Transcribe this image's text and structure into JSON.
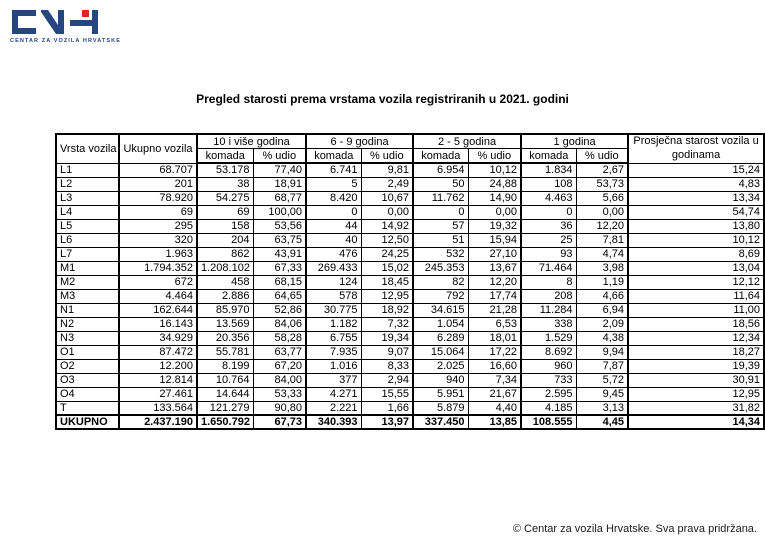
{
  "logo": {
    "name": "CVH",
    "tagline": "CENTAR ZA VOZILA HRVATSKE",
    "brand_blue": "#27457f",
    "brand_red": "#d8291f"
  },
  "title": "Pregled starosti prema vrstama vozila registriranih u 2021. godini",
  "table": {
    "header": {
      "vrsta": "Vrsta vozila",
      "ukupno": "Ukupno vozila",
      "groups": [
        "10 i više godina",
        "6 - 9 godina",
        "2 - 5 godina",
        "1 godina"
      ],
      "sub_komada": "komada",
      "sub_udio": "% udio",
      "prosjecna": "Prosječna starost vozila u godinama"
    },
    "rows": [
      {
        "vrsta": "L1",
        "cells": [
          "68.707",
          "53.178",
          "77,40",
          "6.741",
          "9,81",
          "6.954",
          "10,12",
          "1.834",
          "2,67",
          "15,24"
        ]
      },
      {
        "vrsta": "L2",
        "cells": [
          "201",
          "38",
          "18,91",
          "5",
          "2,49",
          "50",
          "24,88",
          "108",
          "53,73",
          "4,83"
        ]
      },
      {
        "vrsta": "L3",
        "cells": [
          "78.920",
          "54.275",
          "68,77",
          "8.420",
          "10,67",
          "11.762",
          "14,90",
          "4.463",
          "5,66",
          "13,34"
        ]
      },
      {
        "vrsta": "L4",
        "cells": [
          "69",
          "69",
          "100,00",
          "0",
          "0,00",
          "0",
          "0,00",
          "0",
          "0,00",
          "54,74"
        ]
      },
      {
        "vrsta": "L5",
        "cells": [
          "295",
          "158",
          "53,56",
          "44",
          "14,92",
          "57",
          "19,32",
          "36",
          "12,20",
          "13,80"
        ]
      },
      {
        "vrsta": "L6",
        "cells": [
          "320",
          "204",
          "63,75",
          "40",
          "12,50",
          "51",
          "15,94",
          "25",
          "7,81",
          "10,12"
        ]
      },
      {
        "vrsta": "L7",
        "cells": [
          "1.963",
          "862",
          "43,91",
          "476",
          "24,25",
          "532",
          "27,10",
          "93",
          "4,74",
          "8,69"
        ]
      },
      {
        "vrsta": "M1",
        "cells": [
          "1.794.352",
          "1.208.102",
          "67,33",
          "269.433",
          "15,02",
          "245.353",
          "13,67",
          "71.464",
          "3,98",
          "13,04"
        ]
      },
      {
        "vrsta": "M2",
        "cells": [
          "672",
          "458",
          "68,15",
          "124",
          "18,45",
          "82",
          "12,20",
          "8",
          "1,19",
          "12,12"
        ]
      },
      {
        "vrsta": "M3",
        "cells": [
          "4.464",
          "2.886",
          "64,65",
          "578",
          "12,95",
          "792",
          "17,74",
          "208",
          "4,66",
          "11,64"
        ]
      },
      {
        "vrsta": "N1",
        "cells": [
          "162.644",
          "85.970",
          "52,86",
          "30.775",
          "18,92",
          "34.615",
          "21,28",
          "11.284",
          "6,94",
          "11,00"
        ]
      },
      {
        "vrsta": "N2",
        "cells": [
          "16.143",
          "13.569",
          "84,06",
          "1.182",
          "7,32",
          "1.054",
          "6,53",
          "338",
          "2,09",
          "18,56"
        ]
      },
      {
        "vrsta": "N3",
        "cells": [
          "34.929",
          "20.356",
          "58,28",
          "6.755",
          "19,34",
          "6.289",
          "18,01",
          "1.529",
          "4,38",
          "12,34"
        ]
      },
      {
        "vrsta": "O1",
        "cells": [
          "87.472",
          "55.781",
          "63,77",
          "7.935",
          "9,07",
          "15.064",
          "17,22",
          "8.692",
          "9,94",
          "18,27"
        ]
      },
      {
        "vrsta": "O2",
        "cells": [
          "12.200",
          "8.199",
          "67,20",
          "1.016",
          "8,33",
          "2.025",
          "16,60",
          "960",
          "7,87",
          "19,39"
        ]
      },
      {
        "vrsta": "O3",
        "cells": [
          "12.814",
          "10.764",
          "84,00",
          "377",
          "2,94",
          "940",
          "7,34",
          "733",
          "5,72",
          "30,91"
        ]
      },
      {
        "vrsta": "O4",
        "cells": [
          "27.461",
          "14.644",
          "53,33",
          "4.271",
          "15,55",
          "5.951",
          "21,67",
          "2.595",
          "9,45",
          "12,95"
        ]
      },
      {
        "vrsta": "T",
        "cells": [
          "133.564",
          "121.279",
          "90,80",
          "2.221",
          "1,66",
          "5.879",
          "4,40",
          "4.185",
          "3,13",
          "31,82"
        ]
      }
    ],
    "total": {
      "vrsta": "UKUPNO",
      "cells": [
        "2.437.190",
        "1.650.792",
        "67,73",
        "340.393",
        "13,97",
        "337.450",
        "13,85",
        "108.555",
        "4,45",
        "14,34"
      ]
    }
  },
  "footer": "© Centar za vozila Hrvatske. Sva prava pridržana."
}
